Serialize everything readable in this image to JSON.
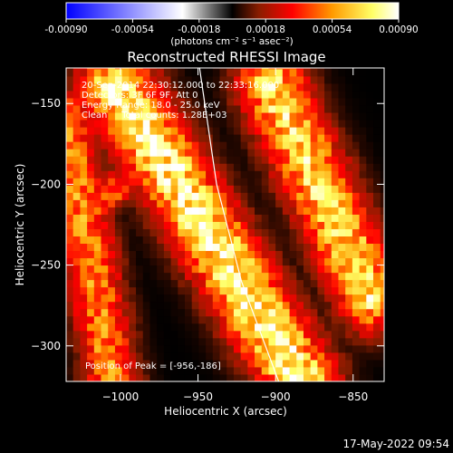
{
  "colorbar": {
    "tick_labels": [
      "-0.00090",
      "-0.00054",
      "-0.00018",
      "0.00018",
      "0.00054",
      "0.00090"
    ],
    "units_label": "(photons cm⁻² s⁻¹ asec⁻²)",
    "stops": [
      "#0000ff",
      "#ffffff",
      "#000000",
      "#8a1d00",
      "#ff0000",
      "#ff9a00",
      "#ffff66",
      "#ffffff"
    ]
  },
  "annotations": {
    "time": "20-Sep-2014 22:30:12.000 to 22:33:16.000",
    "detectors": "Detectors: 3F 6F 9F, Att 0",
    "energy": "Energy Range: 18.0 - 25.0 keV",
    "clean": "Clean     Total counts: 1.28E+03",
    "peak": "Position of Peak = [-956,-186]"
  },
  "footer": {
    "timestamp": "17-May-2022 09:54"
  },
  "chart_data": {
    "type": "heatmap",
    "title": "Reconstructed RHESSI Image",
    "xlabel": "Heliocentric X (arcsec)",
    "ylabel": "Heliocentric Y (arcsec)",
    "xlim": [
      -1035,
      -830
    ],
    "ylim": [
      -322,
      -128
    ],
    "xticks": [
      -1000,
      -950,
      -900,
      -850
    ],
    "yticks": [
      -150,
      -200,
      -250,
      -300
    ],
    "color_range": [
      -0.0009,
      0.0009
    ],
    "peak": [
      -956,
      -186
    ],
    "limb_curve": [
      [
        -949,
        -128
      ],
      [
        -938,
        -200
      ],
      [
        -922,
        -260
      ],
      [
        -898,
        -322
      ]
    ],
    "bright_bands": [
      {
        "from": [
          -1003,
          -138
        ],
        "to": [
          -883,
          -322
        ],
        "half_width_arcsec": 16,
        "peak_value": 0.0009
      },
      {
        "from": [
          -1035,
          -160
        ],
        "to": [
          -1005,
          -322
        ],
        "half_width_arcsec": 12,
        "peak_value": 0.0006
      },
      {
        "from": [
          -903,
          -138
        ],
        "to": [
          -838,
          -270
        ],
        "half_width_arcsec": 15,
        "peak_value": 0.0008
      },
      {
        "from": [
          -1030,
          -226
        ],
        "to": [
          -1000,
          -200
        ],
        "half_width_arcsec": 8,
        "peak_value": 0.0005
      }
    ],
    "background_value": -0.0003
  }
}
